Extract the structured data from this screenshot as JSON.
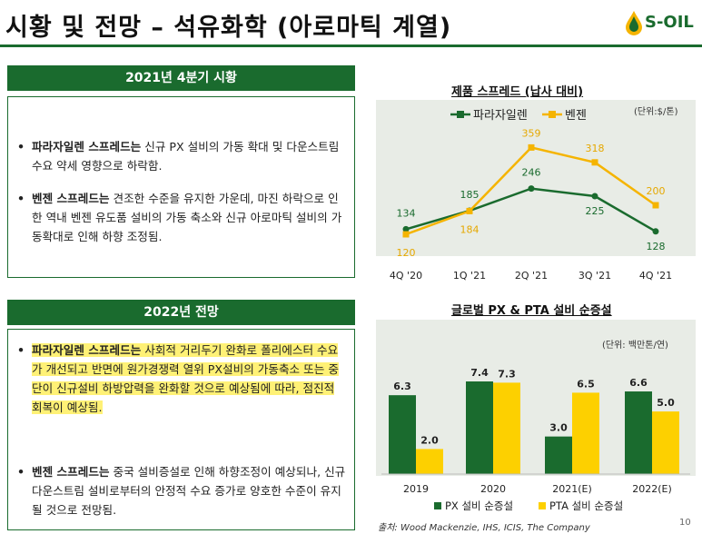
{
  "header": {
    "title": "시황 및 전망 – 석유화학 (아로마틱 계열)",
    "logo_text": "S-OIL"
  },
  "section1": {
    "heading": "2021년 4분기 시황",
    "bullets": [
      {
        "bold": "파라자일렌 스프레드는",
        "text": " 신규 PX 설비의 가동 확대 및 다운스트림 수요 약세 영향으로 하락함."
      },
      {
        "bold": "벤젠 스프레드는",
        "text": " 견조한 수준을 유지한 가운데, 마진 하락으로 인한 역내 벤젠 유도품 설비의 가동 축소와 신규 아로마틱 설비의 가동확대로 인해 하향 조정됨."
      }
    ]
  },
  "section2": {
    "heading": "2022년 전망",
    "bullets": [
      {
        "bold": "파라자일렌 스프레드는",
        "text": " 사회적 거리두기 완화로 폴리에스터 수요가 개선되고 반면에 원가경쟁력 열위 PX설비의 가동축소 또는 중단이 신규설비 하방압력을 완화할 것으로 예상됨에 따라, 점진적 회복이 예상됨."
      },
      {
        "bold": "벤젠 스프레드는",
        "text": " 중국 설비증설로 인해 하향조정이 예상되나, 신규 다운스트림 설비로부터의 안정적 수요 증가로 양호한 수준이 유지될 것으로 전망됨."
      }
    ]
  },
  "chart1_unit": "(단위:$/톤)",
  "chart2_unit": "(단위: 백만톤/연)",
  "source": "출처: Wood Mackenzie, IHS, ICIS, The Company",
  "page_number": "10",
  "colors": {
    "green": "#1a6b2e",
    "yellow": "#fdd000",
    "line_yellow": "#f5b400",
    "highlight": "#fff176"
  },
  "chart_data": [
    {
      "type": "line",
      "title": "제품 스프레드 (납사 대비)",
      "categories": [
        "4Q '20",
        "1Q '21",
        "2Q '21",
        "3Q '21",
        "4Q '21"
      ],
      "series": [
        {
          "name": "파라자일렌",
          "values": [
            134,
            185,
            246,
            225,
            128
          ],
          "color": "#1a6b2e"
        },
        {
          "name": "벤젠",
          "values": [
            120,
            184,
            359,
            318,
            200
          ],
          "color": "#f5b400"
        }
      ],
      "ylim": [
        60,
        420
      ],
      "legend": "top-center"
    },
    {
      "type": "bar",
      "title": "글로벌 PX & PTA 설비 순증설",
      "categories": [
        "2019",
        "2020",
        "2021(E)",
        "2022(E)"
      ],
      "series": [
        {
          "name": "PX 설비 순증설",
          "values": [
            6.3,
            7.4,
            3.0,
            6.6
          ],
          "color": "#1a6b2e"
        },
        {
          "name": "PTA 설비 순증설",
          "values": [
            2.0,
            7.3,
            6.5,
            5.0
          ],
          "color": "#fdd000"
        }
      ],
      "ylim": [
        0,
        9
      ],
      "legend": "bottom"
    }
  ]
}
